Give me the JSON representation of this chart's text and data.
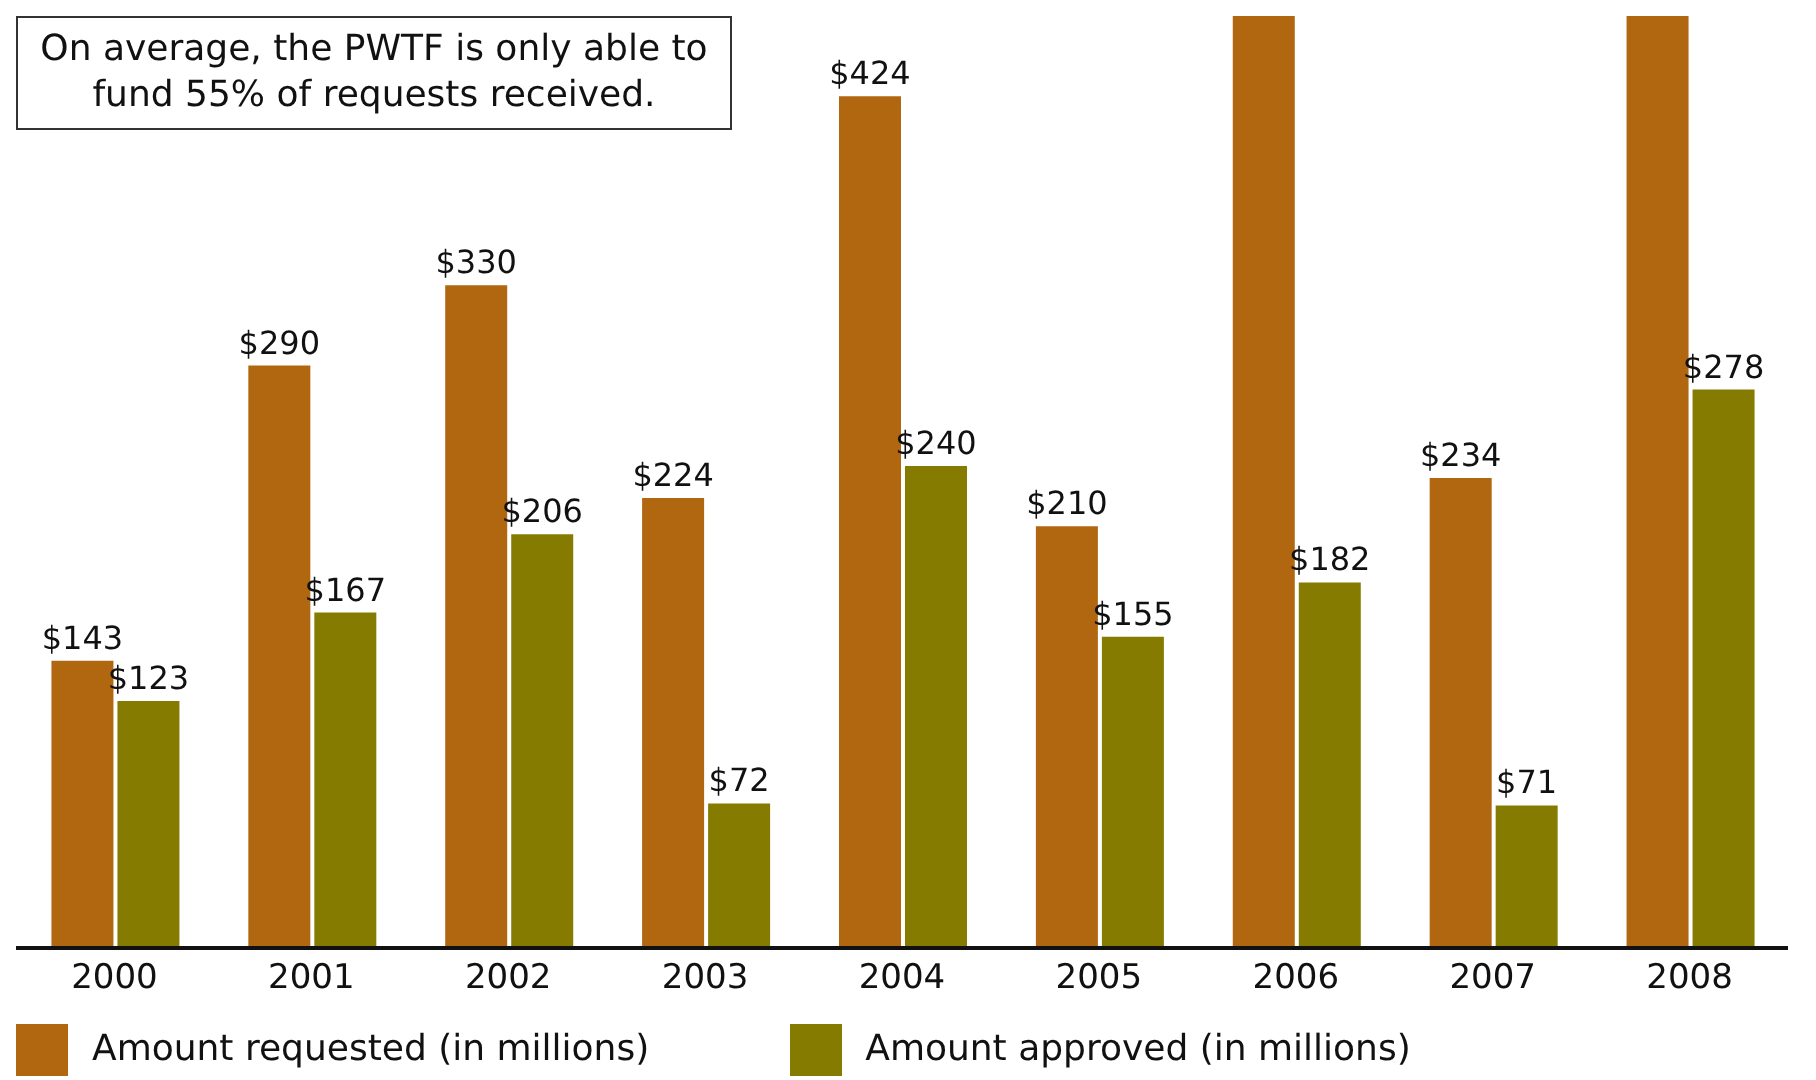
{
  "chart_data": {
    "type": "bar",
    "categories": [
      "2000",
      "2001",
      "2002",
      "2003",
      "2004",
      "2005",
      "2006",
      "2007",
      "2008"
    ],
    "ylim": [
      0,
      464
    ],
    "legend": "bottom",
    "tick_labels": "x",
    "annotations": [
      "On average, the PWTF is only able to fund 55% of requests received."
    ],
    "series": [
      {
        "name": "Amount requested (in millions)",
        "color": "#b0670f",
        "values": [
          143,
          290,
          330,
          224,
          424,
          210,
          464,
          234,
          464
        ],
        "value_labels": [
          "$143",
          "$290",
          "$330",
          "$224",
          "$424",
          "$210",
          null,
          "$234",
          null
        ]
      },
      {
        "name": "Amount approved (in millions)",
        "color": "#857b00",
        "values": [
          123,
          167,
          206,
          72,
          240,
          155,
          182,
          71,
          278
        ],
        "value_labels": [
          "$123",
          "$167",
          "$206",
          "$72",
          "$240",
          "$155",
          "$182",
          "$71",
          "$278"
        ]
      }
    ]
  }
}
